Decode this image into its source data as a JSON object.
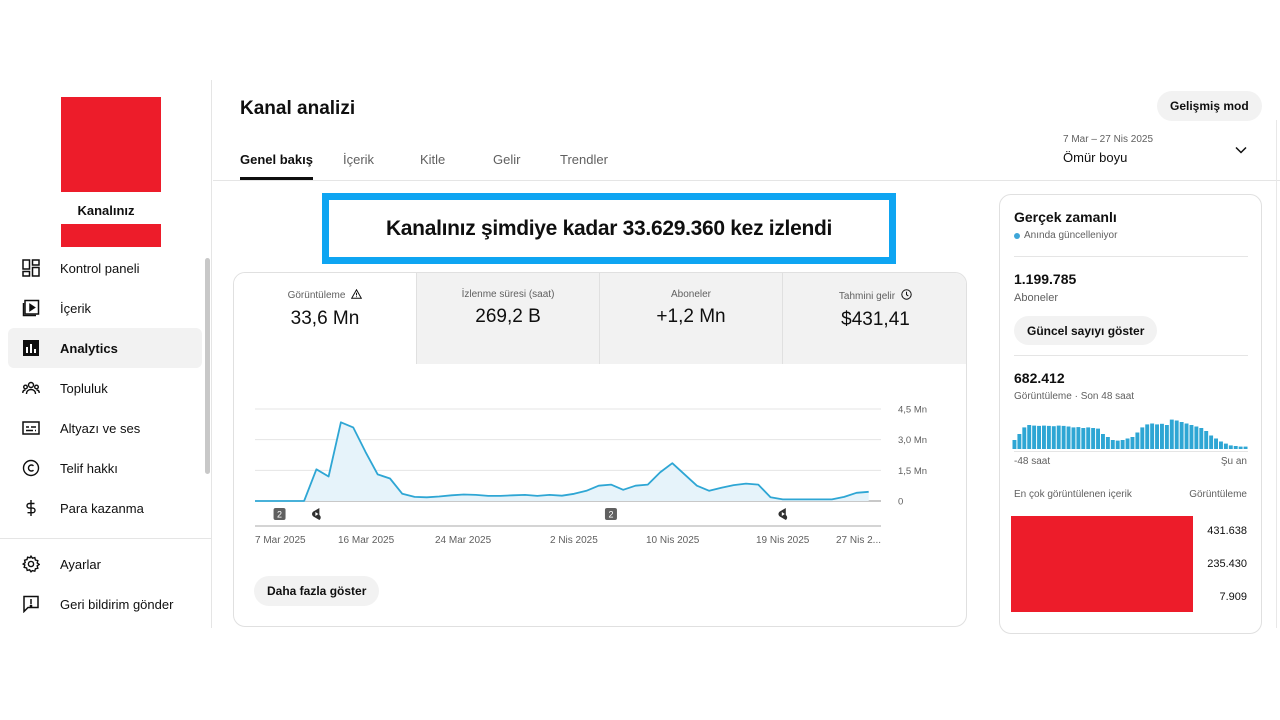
{
  "sidebar": {
    "channel_label": "Kanalınız",
    "items": [
      {
        "label": "Kontrol paneli",
        "icon": "dashboard-icon"
      },
      {
        "label": "İçerik",
        "icon": "content-icon"
      },
      {
        "label": "Analytics",
        "icon": "analytics-icon",
        "active": true
      },
      {
        "label": "Topluluk",
        "icon": "community-icon"
      },
      {
        "label": "Altyazı ve ses",
        "icon": "subtitles-icon"
      },
      {
        "label": "Telif hakkı",
        "icon": "copyright-icon"
      },
      {
        "label": "Para kazanma",
        "icon": "dollar-icon"
      }
    ],
    "bottom_items": [
      {
        "label": "Ayarlar",
        "icon": "gear-icon"
      },
      {
        "label": "Geri bildirim gönder",
        "icon": "feedback-icon"
      }
    ]
  },
  "header": {
    "title": "Kanal analizi",
    "advanced_button": "Gelişmiş mod",
    "tabs": [
      "Genel bakış",
      "İçerik",
      "Kitle",
      "Gelir",
      "Trendler"
    ],
    "active_tab": "Genel bakış",
    "date_range": "7 Mar – 27 Nis 2025",
    "date_period": "Ömür boyu"
  },
  "banner": {
    "text": "Kanalınız şimdiye kadar 33.629.360 kez izlendi",
    "border_color": "#0ea5f2"
  },
  "metrics": [
    {
      "label": "Görüntüleme",
      "value": "33,6 Mn",
      "icon": "warning-icon"
    },
    {
      "label": "İzlenme süresi (saat)",
      "value": "269,2 B"
    },
    {
      "label": "Aboneler",
      "value": "+1,2 Mn"
    },
    {
      "label": "Tahmini gelir",
      "value": "$431,41",
      "icon": "clock-icon"
    }
  ],
  "more_button": "Daha fazla göster",
  "chart_data": {
    "type": "area",
    "color": "#2ea6d4",
    "x_tick_labels": [
      "7 Mar 2025",
      "16 Mar 2025",
      "24 Mar 2025",
      "2 Nis 2025",
      "10 Nis 2025",
      "19 Nis 2025",
      "27 Nis 2..."
    ],
    "y_tick_labels": [
      "4,5 Mn",
      "3,0 Mn",
      "1,5 Mn",
      "0"
    ],
    "ylim": [
      0,
      4.5
    ],
    "y_unit": "Mn",
    "x_start": "2025-03-07",
    "x_end": "2025-04-27",
    "points": [
      [
        "2025-03-07",
        0.0
      ],
      [
        "2025-03-08",
        0.0
      ],
      [
        "2025-03-09",
        0.0
      ],
      [
        "2025-03-10",
        0.0
      ],
      [
        "2025-03-11",
        0.0
      ],
      [
        "2025-03-12",
        1.55
      ],
      [
        "2025-03-13",
        1.2
      ],
      [
        "2025-03-14",
        3.85
      ],
      [
        "2025-03-15",
        3.6
      ],
      [
        "2025-03-16",
        2.4
      ],
      [
        "2025-03-17",
        1.3
      ],
      [
        "2025-03-18",
        1.1
      ],
      [
        "2025-03-19",
        0.35
      ],
      [
        "2025-03-20",
        0.2
      ],
      [
        "2025-03-21",
        0.18
      ],
      [
        "2025-03-22",
        0.22
      ],
      [
        "2025-03-23",
        0.28
      ],
      [
        "2025-03-24",
        0.32
      ],
      [
        "2025-03-25",
        0.3
      ],
      [
        "2025-03-26",
        0.25
      ],
      [
        "2025-03-27",
        0.25
      ],
      [
        "2025-03-28",
        0.28
      ],
      [
        "2025-03-29",
        0.3
      ],
      [
        "2025-03-30",
        0.25
      ],
      [
        "2025-03-31",
        0.3
      ],
      [
        "2025-04-01",
        0.26
      ],
      [
        "2025-04-02",
        0.35
      ],
      [
        "2025-04-03",
        0.5
      ],
      [
        "2025-04-04",
        0.75
      ],
      [
        "2025-04-05",
        0.8
      ],
      [
        "2025-04-06",
        0.55
      ],
      [
        "2025-04-07",
        0.75
      ],
      [
        "2025-04-08",
        0.8
      ],
      [
        "2025-04-09",
        1.4
      ],
      [
        "2025-04-10",
        1.85
      ],
      [
        "2025-04-11",
        1.3
      ],
      [
        "2025-04-12",
        0.75
      ],
      [
        "2025-04-13",
        0.5
      ],
      [
        "2025-04-14",
        0.65
      ],
      [
        "2025-04-15",
        0.78
      ],
      [
        "2025-04-16",
        0.85
      ],
      [
        "2025-04-17",
        0.8
      ],
      [
        "2025-04-18",
        0.18
      ],
      [
        "2025-04-19",
        0.08
      ],
      [
        "2025-04-20",
        0.08
      ],
      [
        "2025-04-21",
        0.08
      ],
      [
        "2025-04-22",
        0.08
      ],
      [
        "2025-04-23",
        0.08
      ],
      [
        "2025-04-24",
        0.2
      ],
      [
        "2025-04-25",
        0.4
      ],
      [
        "2025-04-26",
        0.45
      ]
    ],
    "markers": [
      {
        "x": "2025-03-09",
        "kind": "count",
        "label": "2"
      },
      {
        "x": "2025-03-12",
        "kind": "shorts"
      },
      {
        "x": "2025-04-05",
        "kind": "count",
        "label": "2"
      },
      {
        "x": "2025-04-19",
        "kind": "shorts"
      }
    ]
  },
  "realtime": {
    "title": "Gerçek zamanlı",
    "subtitle": "Anında güncelleniyor",
    "subscribers_value": "1.199.785",
    "subscribers_label": "Aboneler",
    "count_button": "Güncel sayıyı göster",
    "views_value": "682.412",
    "views_label": "Görüntüleme · Son 48 saat",
    "left_label": "-48 saat",
    "right_label": "Şu an",
    "top_content_label": "En çok görüntülenen içerik",
    "top_views_label": "Görüntüleme",
    "top_values": [
      "431.638",
      "235.430",
      "7.909"
    ],
    "bars": [
      0.3,
      0.5,
      0.72,
      0.8,
      0.78,
      0.77,
      0.78,
      0.77,
      0.76,
      0.78,
      0.77,
      0.75,
      0.72,
      0.73,
      0.7,
      0.72,
      0.7,
      0.68,
      0.5,
      0.4,
      0.3,
      0.28,
      0.3,
      0.35,
      0.4,
      0.55,
      0.72,
      0.82,
      0.85,
      0.82,
      0.84,
      0.8,
      0.98,
      0.95,
      0.9,
      0.85,
      0.8,
      0.75,
      0.7,
      0.6,
      0.45,
      0.35,
      0.25,
      0.18,
      0.12,
      0.1,
      0.08,
      0.08
    ]
  }
}
